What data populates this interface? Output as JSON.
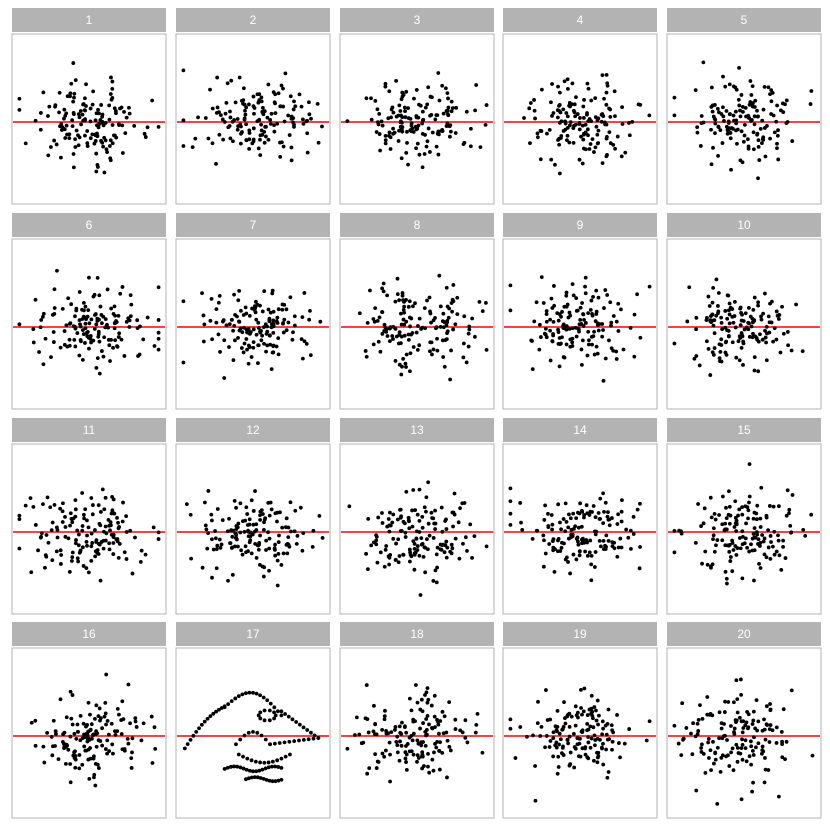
{
  "chart_data": {
    "type": "scatter",
    "layout": "small-multiples lineup",
    "rows": 4,
    "cols": 5,
    "panels": [
      "1",
      "2",
      "3",
      "4",
      "5",
      "6",
      "7",
      "8",
      "9",
      "10",
      "11",
      "12",
      "13",
      "14",
      "15",
      "16",
      "17",
      "18",
      "19",
      "20"
    ],
    "x_range": [
      0,
      100
    ],
    "y_range": [
      -3.5,
      3.5
    ],
    "reference_line": {
      "y": 0,
      "color": "#ff0000"
    },
    "strip_color": "#b3b3b3",
    "strip_text_color": "#ffffff",
    "point_color": "#000000",
    "grid": false,
    "axes_visible": false,
    "points_per_null_panel": 150,
    "special_panel": "17",
    "special_panel_shape": "dinosaur"
  }
}
